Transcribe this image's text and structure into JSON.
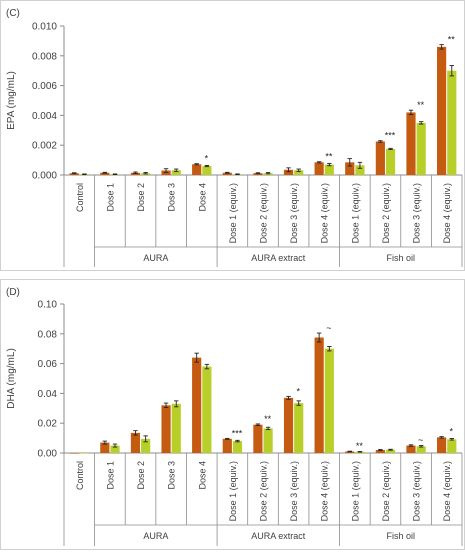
{
  "colors": {
    "series1": "#c55a11",
    "series2": "#b8cf2a",
    "axis": "#8c8c8c",
    "error": "#222222",
    "text": "#404040"
  },
  "chart_data": [
    {
      "type": "bar",
      "panel_label": "(C)",
      "ylabel": "EPA (mg/mL)",
      "ylim": [
        0,
        0.01
      ],
      "yticks": [
        "0.000",
        "0.002",
        "0.004",
        "0.006",
        "0.008",
        "0.010"
      ],
      "categories": [
        "Control",
        "Dose 1",
        "Dose 2",
        "Dose 3",
        "Dose 4",
        "Dose 1 (equiv.)",
        "Dose 2 (equiv.)",
        "Dose 3 (equiv.)",
        "Dose 4 (equiv.)",
        "Dose 1 (equiv.)",
        "Dose 2 (equiv.)",
        "Dose 3 (equiv.)",
        "Dose 4 (equiv.)"
      ],
      "groups": [
        {
          "label": "",
          "start": 0,
          "end": 0
        },
        {
          "label": "AURA",
          "start": 1,
          "end": 4
        },
        {
          "label": "AURA extract",
          "start": 5,
          "end": 8
        },
        {
          "label": "Fish oil",
          "start": 9,
          "end": 12
        }
      ],
      "series": [
        {
          "values": [
            0.00012,
            0.00015,
            0.00015,
            0.0003,
            0.00072,
            0.00015,
            0.00012,
            0.00035,
            0.00085,
            0.00085,
            0.00225,
            0.0042,
            0.0086
          ],
          "errors": [
            3e-05,
            3e-05,
            5e-05,
            0.00012,
            4e-05,
            3e-05,
            3e-05,
            0.00013,
            4e-05,
            0.00025,
            5e-05,
            0.00015,
            0.00015
          ]
        },
        {
          "values": [
            5e-05,
            5e-05,
            0.00012,
            0.00032,
            0.0006,
            5e-05,
            0.00012,
            0.00032,
            0.0007,
            0.00065,
            0.00175,
            0.0035,
            0.007
          ],
          "errors": [
            2e-05,
            2e-05,
            5e-05,
            8e-05,
            4e-05,
            2e-05,
            4e-05,
            8e-05,
            8e-05,
            0.0002,
            4e-05,
            8e-05,
            0.00035
          ]
        }
      ],
      "annotations": [
        "",
        "",
        "",
        "",
        "*",
        "",
        "",
        "",
        "**",
        "",
        "***",
        "**",
        "**"
      ]
    },
    {
      "type": "bar",
      "panel_label": "(D)",
      "ylabel": "DHA (mg/mL)",
      "ylim": [
        0,
        0.1
      ],
      "yticks": [
        "0.00",
        "0.02",
        "0.04",
        "0.06",
        "0.08",
        "0.10"
      ],
      "categories": [
        "Control",
        "Dose 1",
        "Dose 2",
        "Dose 3",
        "Dose 4",
        "Dose 1 (equiv.)",
        "Dose 2 (equiv.)",
        "Dose 3 (equiv.)",
        "Dose 4 (equiv.)",
        "Dose 1 (equiv.)",
        "Dose 2 (equiv.)",
        "Dose 3 (equiv.)",
        "Dose 4 (equiv.)"
      ],
      "groups": [
        {
          "label": "",
          "start": 0,
          "end": 0
        },
        {
          "label": "AURA",
          "start": 1,
          "end": 4
        },
        {
          "label": "AURA extract",
          "start": 5,
          "end": 8
        },
        {
          "label": "Fish oil",
          "start": 9,
          "end": 12
        }
      ],
      "series": [
        {
          "values": [
            0.0,
            0.007,
            0.0135,
            0.032,
            0.064,
            0.0095,
            0.019,
            0.037,
            0.0775,
            0.001,
            0.002,
            0.005,
            0.0105
          ],
          "errors": [
            0,
            0.001,
            0.0015,
            0.0015,
            0.003,
            0.0003,
            0.0005,
            0.001,
            0.003,
            0.0002,
            0.0003,
            0.0005,
            0.0005
          ]
        },
        {
          "values": [
            0.0,
            0.005,
            0.0095,
            0.033,
            0.058,
            0.008,
            0.0165,
            0.0335,
            0.07,
            0.0008,
            0.0022,
            0.0045,
            0.0092
          ],
          "errors": [
            0,
            0.001,
            0.002,
            0.002,
            0.0015,
            0.0005,
            0.0008,
            0.0015,
            0.0015,
            0.0002,
            0.0003,
            0.0005,
            0.0005
          ]
        }
      ],
      "annotations": [
        "",
        "",
        "",
        "",
        "",
        "***",
        "**",
        "*",
        "~",
        "**",
        "",
        "~",
        "*"
      ]
    }
  ]
}
